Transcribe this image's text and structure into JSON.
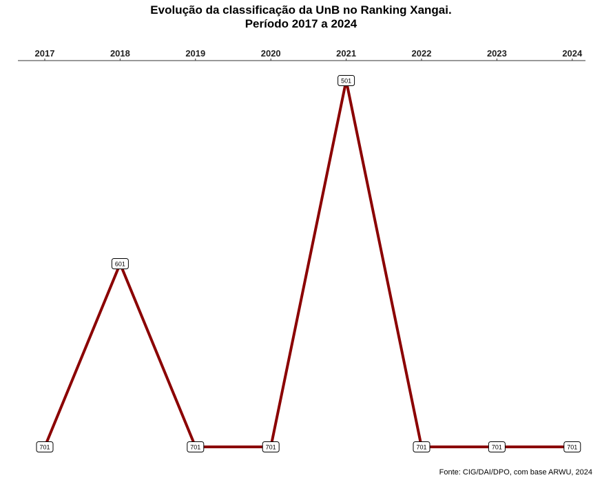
{
  "chart_data": {
    "type": "line",
    "title": "Evolução da classificação da UnB no Ranking Xangai.",
    "subtitle": "Período 2017 a 2024",
    "x": [
      "2017",
      "2018",
      "2019",
      "2020",
      "2021",
      "2022",
      "2023",
      "2024"
    ],
    "values": [
      701,
      601,
      701,
      701,
      501,
      701,
      701,
      701
    ],
    "data_labels": [
      "701",
      "601",
      "701",
      "701",
      "501",
      "701",
      "701",
      "701"
    ],
    "x_axis_position": "top",
    "y_axis": "hidden, reversed (rank 501 at top, 701 at bottom)",
    "grid": false,
    "line_color": "#8b0000",
    "caption": "Fonte: CIG/DAI/DPO, com base ARWU, 2024"
  }
}
